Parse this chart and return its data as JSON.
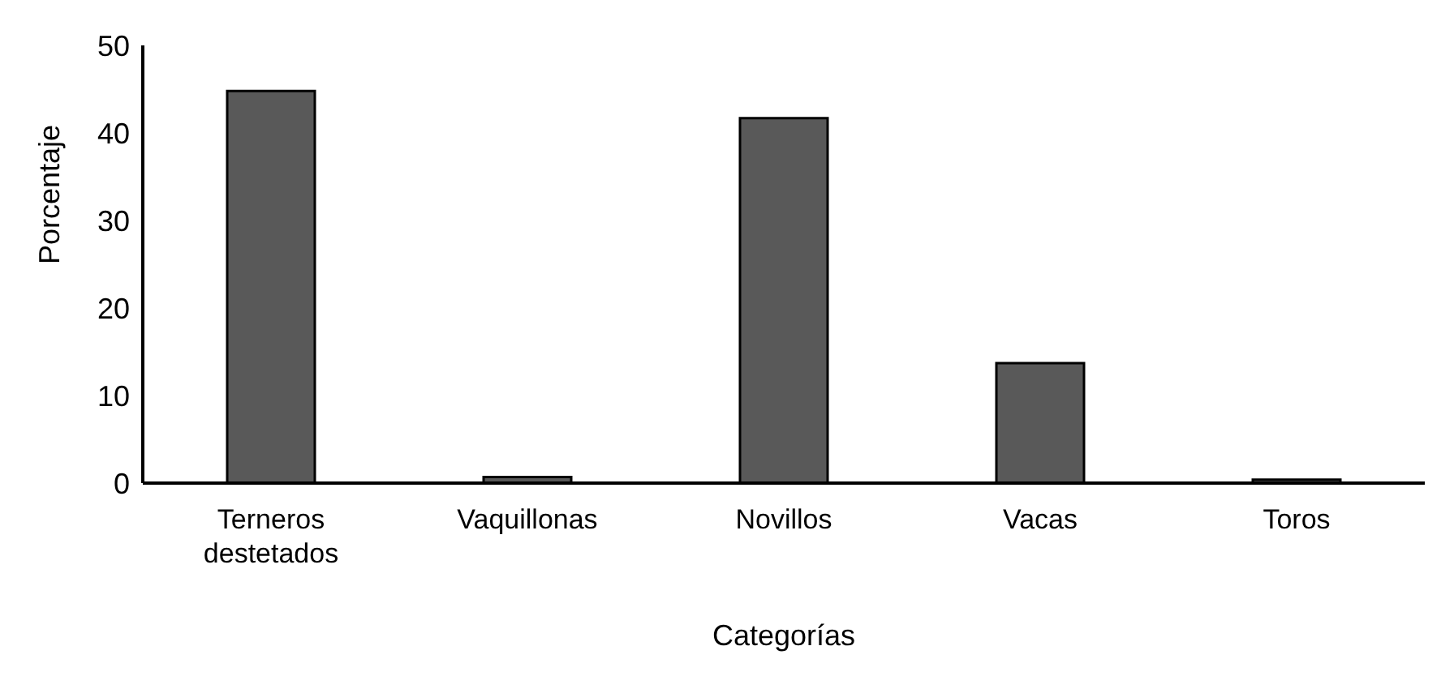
{
  "chart_data": {
    "type": "bar",
    "xlabel": "Categorías",
    "ylabel": "Porcentaje",
    "categories": [
      "Terneros destetados",
      "Vaquillonas",
      "Novillos",
      "Vacas",
      "Toros"
    ],
    "values": [
      44.8,
      0.7,
      41.7,
      13.7,
      0.4
    ],
    "color": "#595959",
    "ylim": [
      0,
      50
    ],
    "yticks": [
      0,
      10,
      20,
      30,
      40,
      50
    ],
    "grid": false,
    "legend": false
  }
}
